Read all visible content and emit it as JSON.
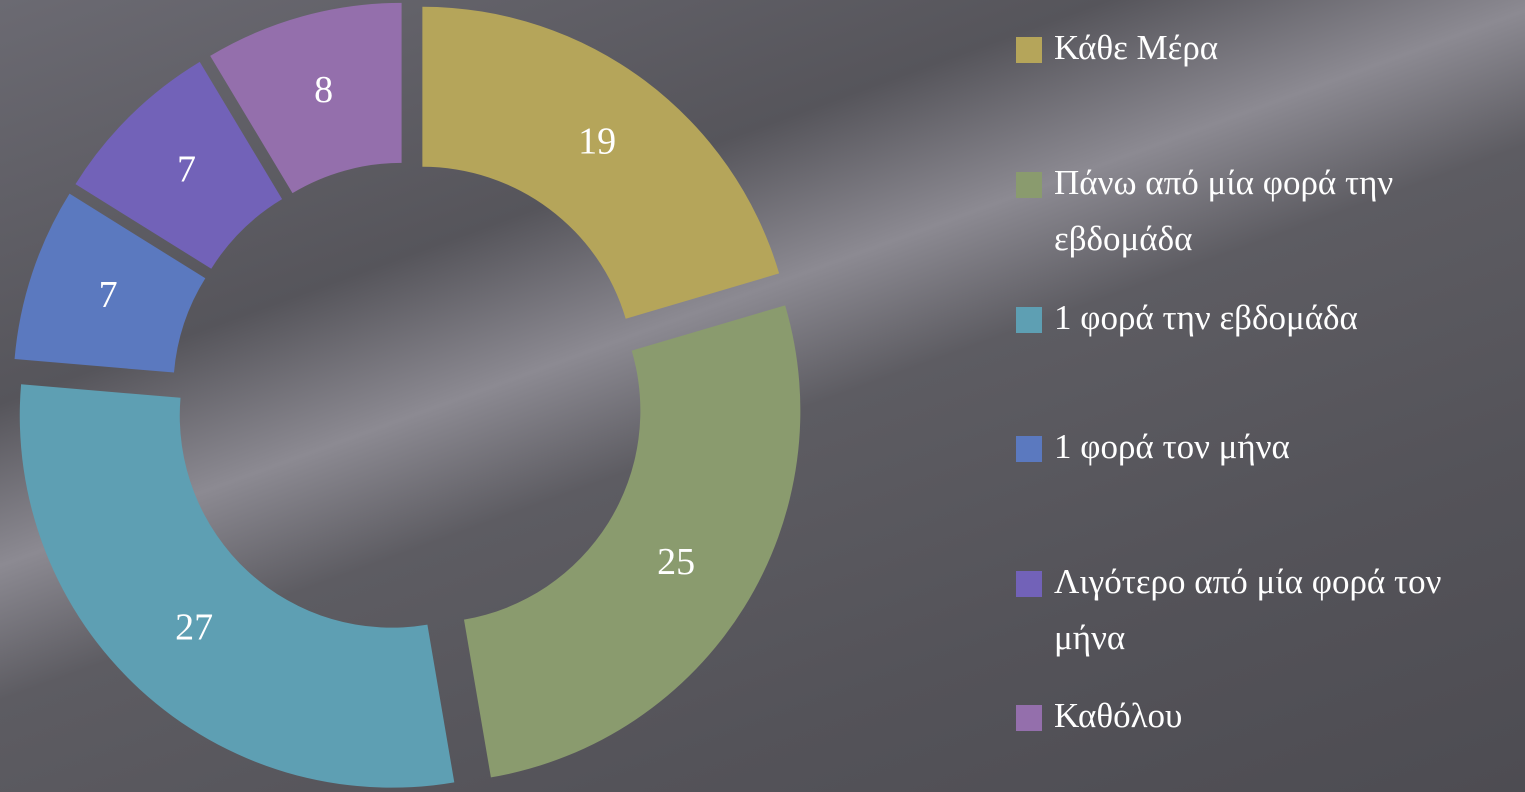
{
  "chart_data": {
    "type": "donut",
    "categories": [
      "Κάθε Μέρα",
      "Πάνω από μία φορά την εβδομάδα",
      "1 φορά την εβδομάδα",
      "1 φορά τον μήνα",
      "Λιγότερο από μία φορά τον μήνα",
      "Καθόλου"
    ],
    "values": [
      19,
      25,
      27,
      7,
      7,
      8
    ],
    "colors": [
      "#b5a55a",
      "#8a9b6e",
      "#5e9fb3",
      "#5b79bf",
      "#7262b8",
      "#946fac"
    ],
    "legend": "right"
  }
}
